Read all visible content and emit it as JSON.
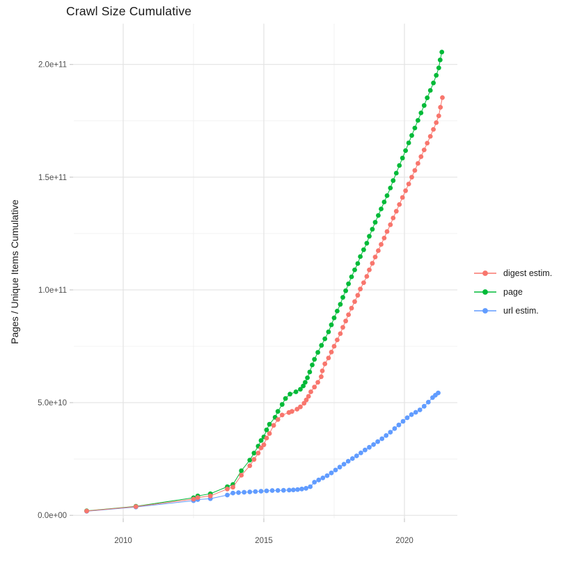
{
  "chart_data": {
    "type": "line",
    "title": "Crawl Size Cumulative",
    "xlabel": "",
    "ylabel": "Pages / Unique Items Cumulative",
    "legend_position": "right",
    "grid": "on",
    "background": "#ffffff",
    "xlim": [
      2008.2,
      2021.9
    ],
    "ylim": [
      0,
      218000000000.0
    ],
    "x_axis": {
      "major_ticks": [
        2010,
        2015,
        2020
      ],
      "major_tick_labels": [
        "2010",
        "2015",
        "2020"
      ],
      "minor_ticks": [
        2012.5,
        2017.5
      ]
    },
    "y_axis": {
      "major_ticks_e9": [
        0,
        50,
        100,
        150,
        200
      ],
      "major_tick_labels": [
        "0.0e+00",
        "5.0e+10",
        "1.0e+11",
        "1.5e+11",
        "2.0e+11"
      ],
      "minor_ticks_e9": [
        25,
        75,
        125,
        175
      ]
    },
    "value_unit": "points are [decimal_year, cumulative_count_in_billions(1e9)]",
    "series": [
      {
        "name": "url estim.",
        "color": "#619CFF",
        "points": [
          [
            2008.7,
            1.8
          ],
          [
            2010.45,
            3.7
          ],
          [
            2012.5,
            6.5
          ],
          [
            2012.65,
            7.0
          ],
          [
            2013.1,
            7.4
          ],
          [
            2013.7,
            9.0
          ],
          [
            2013.9,
            9.9
          ],
          [
            2014.1,
            10.1
          ],
          [
            2014.3,
            10.25
          ],
          [
            2014.5,
            10.4
          ],
          [
            2014.7,
            10.55
          ],
          [
            2014.9,
            10.7
          ],
          [
            2015.1,
            10.85
          ],
          [
            2015.3,
            11.0
          ],
          [
            2015.5,
            11.05
          ],
          [
            2015.7,
            11.1
          ],
          [
            2015.9,
            11.2
          ],
          [
            2016.05,
            11.3
          ],
          [
            2016.2,
            11.45
          ],
          [
            2016.35,
            11.7
          ],
          [
            2016.5,
            12.0
          ],
          [
            2016.65,
            12.7
          ],
          [
            2016.8,
            14.7
          ],
          [
            2016.95,
            15.7
          ],
          [
            2017.1,
            16.6
          ],
          [
            2017.25,
            17.6
          ],
          [
            2017.4,
            18.8
          ],
          [
            2017.55,
            20.1
          ],
          [
            2017.7,
            21.4
          ],
          [
            2017.85,
            22.7
          ],
          [
            2018.0,
            24.0
          ],
          [
            2018.15,
            25.2
          ],
          [
            2018.3,
            26.4
          ],
          [
            2018.45,
            27.7
          ],
          [
            2018.6,
            29.0
          ],
          [
            2018.75,
            30.2
          ],
          [
            2018.9,
            31.4
          ],
          [
            2019.05,
            32.7
          ],
          [
            2019.2,
            34.0
          ],
          [
            2019.35,
            35.4
          ],
          [
            2019.5,
            36.9
          ],
          [
            2019.65,
            38.5
          ],
          [
            2019.8,
            40.1
          ],
          [
            2019.95,
            41.7
          ],
          [
            2020.1,
            43.3
          ],
          [
            2020.25,
            44.7
          ],
          [
            2020.4,
            45.7
          ],
          [
            2020.55,
            46.8
          ],
          [
            2020.7,
            48.4
          ],
          [
            2020.85,
            50.2
          ],
          [
            2021.0,
            52.2
          ],
          [
            2021.1,
            53.3
          ],
          [
            2021.2,
            54.3
          ]
        ]
      },
      {
        "name": "page",
        "color": "#00BA38",
        "points": [
          [
            2008.7,
            2.0
          ],
          [
            2010.45,
            4.0
          ],
          [
            2012.5,
            7.8
          ],
          [
            2012.65,
            8.6
          ],
          [
            2013.1,
            9.6
          ],
          [
            2013.7,
            12.7
          ],
          [
            2013.9,
            13.7
          ],
          [
            2014.2,
            19.8
          ],
          [
            2014.5,
            24.5
          ],
          [
            2014.65,
            27.6
          ],
          [
            2014.8,
            30.7
          ],
          [
            2014.9,
            33.2
          ],
          [
            2015.0,
            34.8
          ],
          [
            2015.1,
            37.9
          ],
          [
            2015.2,
            40.4
          ],
          [
            2015.4,
            43.5
          ],
          [
            2015.5,
            46.1
          ],
          [
            2015.65,
            49.2
          ],
          [
            2015.77,
            51.8
          ],
          [
            2015.93,
            53.8
          ],
          [
            2016.14,
            54.8
          ],
          [
            2016.3,
            55.9
          ],
          [
            2016.4,
            57.4
          ],
          [
            2016.47,
            59.0
          ],
          [
            2016.55,
            61.0
          ],
          [
            2016.63,
            63.6
          ],
          [
            2016.72,
            66.7
          ],
          [
            2016.8,
            69.2
          ],
          [
            2016.92,
            72.3
          ],
          [
            2017.05,
            75.4
          ],
          [
            2017.17,
            78.3
          ],
          [
            2017.3,
            81.4
          ],
          [
            2017.4,
            84.5
          ],
          [
            2017.5,
            87.6
          ],
          [
            2017.61,
            90.6
          ],
          [
            2017.72,
            93.6
          ],
          [
            2017.81,
            96.7
          ],
          [
            2017.91,
            99.6
          ],
          [
            2018.01,
            102.7
          ],
          [
            2018.12,
            105.8
          ],
          [
            2018.23,
            108.9
          ],
          [
            2018.34,
            111.7
          ],
          [
            2018.43,
            114.8
          ],
          [
            2018.55,
            117.8
          ],
          [
            2018.66,
            120.7
          ],
          [
            2018.75,
            123.8
          ],
          [
            2018.86,
            126.9
          ],
          [
            2018.96,
            130.0
          ],
          [
            2019.07,
            133.0
          ],
          [
            2019.17,
            135.9
          ],
          [
            2019.28,
            139.0
          ],
          [
            2019.38,
            141.8
          ],
          [
            2019.5,
            145.2
          ],
          [
            2019.6,
            148.5
          ],
          [
            2019.71,
            151.8
          ],
          [
            2019.82,
            155.2
          ],
          [
            2019.93,
            158.5
          ],
          [
            2020.04,
            161.8
          ],
          [
            2020.15,
            165.2
          ],
          [
            2020.26,
            168.5
          ],
          [
            2020.37,
            171.8
          ],
          [
            2020.48,
            175.2
          ],
          [
            2020.59,
            178.5
          ],
          [
            2020.7,
            181.8
          ],
          [
            2020.81,
            185.2
          ],
          [
            2020.92,
            188.5
          ],
          [
            2021.03,
            191.8
          ],
          [
            2021.13,
            195.2
          ],
          [
            2021.22,
            198.5
          ],
          [
            2021.27,
            202.0
          ],
          [
            2021.33,
            205.5
          ]
        ]
      },
      {
        "name": "digest estim.",
        "color": "#F8766D",
        "points": [
          [
            2008.7,
            1.9
          ],
          [
            2010.45,
            3.9
          ],
          [
            2012.5,
            7.2
          ],
          [
            2012.65,
            7.9
          ],
          [
            2013.1,
            8.6
          ],
          [
            2013.7,
            11.7
          ],
          [
            2013.9,
            12.5
          ],
          [
            2014.2,
            17.8
          ],
          [
            2014.5,
            22.0
          ],
          [
            2014.65,
            24.8
          ],
          [
            2014.8,
            27.6
          ],
          [
            2014.9,
            29.9
          ],
          [
            2015.0,
            31.3
          ],
          [
            2015.1,
            34.3
          ],
          [
            2015.2,
            36.3
          ],
          [
            2015.35,
            39.9
          ],
          [
            2015.5,
            42.5
          ],
          [
            2015.65,
            44.5
          ],
          [
            2015.89,
            45.6
          ],
          [
            2016.0,
            46.1
          ],
          [
            2016.18,
            47.1
          ],
          [
            2016.3,
            48.1
          ],
          [
            2016.43,
            49.7
          ],
          [
            2016.51,
            51.2
          ],
          [
            2016.59,
            52.8
          ],
          [
            2016.67,
            54.8
          ],
          [
            2016.8,
            56.9
          ],
          [
            2016.92,
            59.0
          ],
          [
            2017.04,
            61.5
          ],
          [
            2017.08,
            64.1
          ],
          [
            2017.17,
            67.2
          ],
          [
            2017.3,
            69.8
          ],
          [
            2017.4,
            72.4
          ],
          [
            2017.5,
            75.0
          ],
          [
            2017.61,
            77.8
          ],
          [
            2017.72,
            80.6
          ],
          [
            2017.81,
            83.4
          ],
          [
            2017.91,
            86.2
          ],
          [
            2018.01,
            89.0
          ],
          [
            2018.12,
            91.9
          ],
          [
            2018.23,
            94.8
          ],
          [
            2018.34,
            97.6
          ],
          [
            2018.43,
            100.4
          ],
          [
            2018.55,
            103.2
          ],
          [
            2018.66,
            106.0
          ],
          [
            2018.75,
            108.9
          ],
          [
            2018.86,
            111.8
          ],
          [
            2018.96,
            114.6
          ],
          [
            2019.07,
            117.4
          ],
          [
            2019.17,
            120.2
          ],
          [
            2019.28,
            123.0
          ],
          [
            2019.38,
            125.9
          ],
          [
            2019.5,
            128.9
          ],
          [
            2019.6,
            131.9
          ],
          [
            2019.71,
            134.9
          ],
          [
            2019.82,
            137.9
          ],
          [
            2019.93,
            141.0
          ],
          [
            2020.04,
            144.0
          ],
          [
            2020.15,
            147.0
          ],
          [
            2020.26,
            150.0
          ],
          [
            2020.37,
            153.0
          ],
          [
            2020.48,
            156.1
          ],
          [
            2020.59,
            159.1
          ],
          [
            2020.7,
            162.1
          ],
          [
            2020.81,
            165.1
          ],
          [
            2020.92,
            168.1
          ],
          [
            2021.03,
            171.2
          ],
          [
            2021.13,
            174.2
          ],
          [
            2021.22,
            177.2
          ],
          [
            2021.28,
            181.0
          ],
          [
            2021.35,
            185.3
          ]
        ]
      }
    ],
    "legend_entries": [
      "digest estim.",
      "page",
      "url estim."
    ],
    "style": {
      "grid_major_color": "#e3e3e3",
      "grid_minor_color": "#f0f0f0",
      "tick_color": "#c9c9c9",
      "tick_label_color": "#4d4d4d",
      "title_color": "#1a1a1a"
    }
  }
}
